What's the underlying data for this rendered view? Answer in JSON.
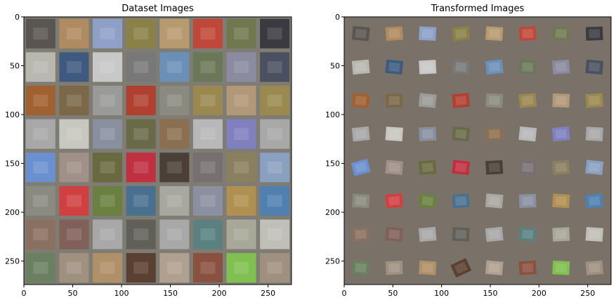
{
  "chart_data": [
    {
      "type": "image-grid",
      "title": "Dataset Images",
      "xlim": [
        0,
        274
      ],
      "ylim": [
        274,
        0
      ],
      "xticks": [
        0,
        50,
        100,
        150,
        200,
        250
      ],
      "yticks": [
        0,
        50,
        100,
        150,
        200,
        250
      ],
      "grid_rows": 8,
      "grid_cols": 8,
      "border_color": "#7f7c73",
      "tile_colors": [
        [
          "#5a5550",
          "#b08a60",
          "#8ea0c8",
          "#8a8048",
          "#b89a70",
          "#c0483a",
          "#707850",
          "#3a3a40"
        ],
        [
          "#b8b8b0",
          "#3e5a80",
          "#c8c8c8",
          "#787878",
          "#6a90b8",
          "#6a7858",
          "#8a8aa0",
          "#4a5060"
        ],
        [
          "#a06030",
          "#7a6848",
          "#9a9a98",
          "#b04030",
          "#8a8a80",
          "#9a8850",
          "#b09878",
          "#9a8a50"
        ],
        [
          "#a8a8a8",
          "#c8c8c0",
          "#8890a0",
          "#6a6a48",
          "#8a7050",
          "#b8b8b8",
          "#8080c0",
          "#a8a8a8"
        ],
        [
          "#6a90d0",
          "#a09088",
          "#6a6a40",
          "#c03040",
          "#4a4038",
          "#787070",
          "#8a8060",
          "#8aa0c0"
        ],
        [
          "#8a8a80",
          "#d04040",
          "#6a8040",
          "#4a7090",
          "#a8a8a0",
          "#8a90a0",
          "#b09050",
          "#5080b0"
        ],
        [
          "#8a7060",
          "#806058",
          "#a8a8a8",
          "#606058",
          "#a8a8a8",
          "#5a8080",
          "#a8a898",
          "#c0c0b8"
        ],
        [
          "#6a8060",
          "#a09080",
          "#b09068",
          "#5a4030",
          "#b0a090",
          "#8a5040",
          "#80c050",
          "#a09080"
        ]
      ]
    },
    {
      "type": "image-grid",
      "title": "Transformed Images",
      "xlim": [
        0,
        274
      ],
      "ylim": [
        274,
        0
      ],
      "xticks": [
        0,
        50,
        100,
        150,
        200,
        250
      ],
      "yticks": [
        0,
        50,
        100,
        150,
        200,
        250
      ],
      "grid_rows": 8,
      "grid_cols": 8,
      "background_color": "#7a7268",
      "tile_colors": [
        [
          "#5a5550",
          "#b08a60",
          "#8ea0c8",
          "#8a8048",
          "#b89a70",
          "#c0483a",
          "#707850",
          "#3a3a40"
        ],
        [
          "#b8b8b0",
          "#3e5a80",
          "#c8c8c8",
          "#787878",
          "#6a90b8",
          "#6a7858",
          "#8a8aa0",
          "#4a5060"
        ],
        [
          "#a06030",
          "#7a6848",
          "#9a9a98",
          "#b04030",
          "#8a8a80",
          "#9a8850",
          "#b09878",
          "#9a8a50"
        ],
        [
          "#a8a8a8",
          "#c8c8c0",
          "#8890a0",
          "#6a6a48",
          "#8a7050",
          "#b8b8b8",
          "#8080c0",
          "#a8a8a8"
        ],
        [
          "#6a90d0",
          "#a09088",
          "#6a6a40",
          "#c03040",
          "#4a4038",
          "#787070",
          "#8a8060",
          "#8aa0c0"
        ],
        [
          "#8a8a80",
          "#d04040",
          "#6a8040",
          "#4a7090",
          "#a8a8a0",
          "#8a90a0",
          "#b09050",
          "#5080b0"
        ],
        [
          "#8a7060",
          "#806058",
          "#a8a8a8",
          "#606058",
          "#a8a8a8",
          "#5a8080",
          "#a8a898",
          "#c0c0b8"
        ],
        [
          "#6a8060",
          "#a09080",
          "#b09068",
          "#5a4030",
          "#b0a090",
          "#8a5040",
          "#80c050",
          "#a09080"
        ]
      ],
      "tile_rotations_deg": [
        [
          5,
          -4,
          3,
          -6,
          4,
          -3,
          6,
          -2
        ],
        [
          -5,
          6,
          -3,
          4,
          -6,
          3,
          -4,
          5
        ],
        [
          4,
          -3,
          6,
          -5,
          3,
          -6,
          2,
          -4
        ],
        [
          -6,
          4,
          -2,
          5,
          -4,
          6,
          -5,
          3
        ],
        [
          -15,
          5,
          -4,
          6,
          -3,
          4,
          -5,
          6
        ],
        [
          3,
          -5,
          6,
          -4,
          5,
          -2,
          4,
          -6
        ],
        [
          -4,
          6,
          -5,
          3,
          -6,
          5,
          -3,
          4
        ],
        [
          6,
          -3,
          4,
          -25,
          5,
          -4,
          3,
          -5
        ]
      ]
    }
  ]
}
